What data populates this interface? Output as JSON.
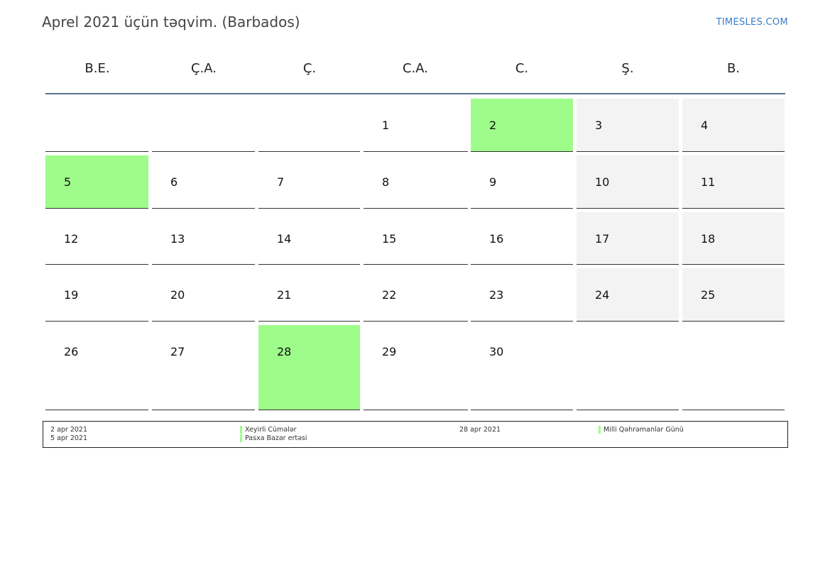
{
  "header": {
    "title": "Aprel 2021 üçün təqvim. (Barbados)",
    "brand": "TIMESLES.COM"
  },
  "weekdays": [
    "B.E.",
    "Ç.A.",
    "Ç.",
    "C.A.",
    "C.",
    "Ş.",
    "B."
  ],
  "weeks": [
    [
      {
        "day": "",
        "type": "empty"
      },
      {
        "day": "",
        "type": "empty"
      },
      {
        "day": "",
        "type": "empty"
      },
      {
        "day": "1",
        "type": "normal"
      },
      {
        "day": "2",
        "type": "holiday"
      },
      {
        "day": "3",
        "type": "weekend"
      },
      {
        "day": "4",
        "type": "weekend"
      }
    ],
    [
      {
        "day": "5",
        "type": "holiday"
      },
      {
        "day": "6",
        "type": "normal"
      },
      {
        "day": "7",
        "type": "normal"
      },
      {
        "day": "8",
        "type": "normal"
      },
      {
        "day": "9",
        "type": "normal"
      },
      {
        "day": "10",
        "type": "weekend"
      },
      {
        "day": "11",
        "type": "weekend"
      }
    ],
    [
      {
        "day": "12",
        "type": "normal"
      },
      {
        "day": "13",
        "type": "normal"
      },
      {
        "day": "14",
        "type": "normal"
      },
      {
        "day": "15",
        "type": "normal"
      },
      {
        "day": "16",
        "type": "normal"
      },
      {
        "day": "17",
        "type": "weekend"
      },
      {
        "day": "18",
        "type": "weekend"
      }
    ],
    [
      {
        "day": "19",
        "type": "normal"
      },
      {
        "day": "20",
        "type": "normal"
      },
      {
        "day": "21",
        "type": "normal"
      },
      {
        "day": "22",
        "type": "normal"
      },
      {
        "day": "23",
        "type": "normal"
      },
      {
        "day": "24",
        "type": "weekend"
      },
      {
        "day": "25",
        "type": "weekend"
      }
    ],
    [
      {
        "day": "26",
        "type": "normal"
      },
      {
        "day": "27",
        "type": "normal"
      },
      {
        "day": "28",
        "type": "holiday"
      },
      {
        "day": "29",
        "type": "normal"
      },
      {
        "day": "30",
        "type": "normal"
      },
      {
        "day": "",
        "type": "empty"
      },
      {
        "day": "",
        "type": "empty"
      }
    ]
  ],
  "holidays": [
    {
      "date": "2 apr 2021",
      "name": "Xeyirli Cümələr"
    },
    {
      "date": "5 apr 2021",
      "name": "Pasxa Bazar ertəsi"
    },
    {
      "date": "28 apr 2021",
      "name": "Milli Qəhrəmanlar Günü"
    }
  ],
  "colors": {
    "holiday": "#9dfc8a",
    "weekend": "#f3f3f3",
    "header_line": "#5a7291",
    "brand": "#3a7bc8"
  }
}
